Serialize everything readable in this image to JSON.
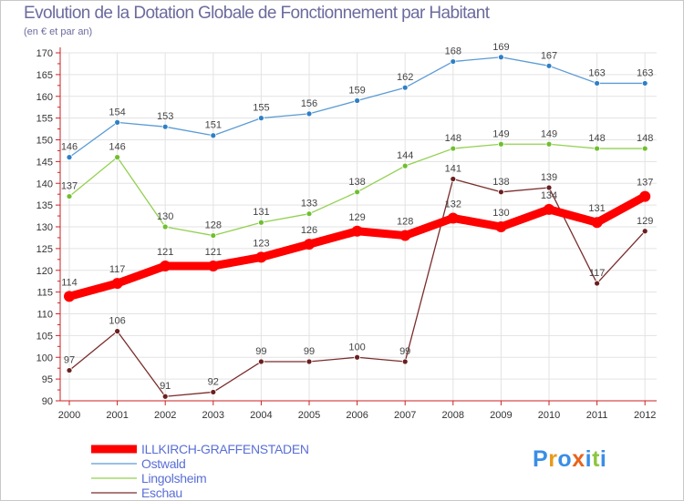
{
  "chart_data": {
    "type": "line",
    "title": "Evolution de la Dotation Globale de Fonctionnement par Habitant",
    "subtitle": "(en € et par an)",
    "xlabel": "",
    "ylabel": "",
    "ylim": [
      90,
      170
    ],
    "y_ticks": [
      90,
      95,
      100,
      105,
      110,
      115,
      120,
      125,
      130,
      135,
      140,
      145,
      150,
      155,
      160,
      165,
      170
    ],
    "x": [
      "2000",
      "2001",
      "2002",
      "2003",
      "2004",
      "2005",
      "2006",
      "2007",
      "2008",
      "2009",
      "2010",
      "2011",
      "2012"
    ],
    "grid": true,
    "legend_position": "bottom-left",
    "series": [
      {
        "name": "Ostwald",
        "color": "#5b9bd5",
        "marker": "#2f7fc6",
        "values": [
          146,
          154,
          153,
          151,
          155,
          156,
          159,
          162,
          168,
          169,
          167,
          163,
          163
        ]
      },
      {
        "name": "Lingolsheim",
        "color": "#92d050",
        "marker": "#6fbf2e",
        "values": [
          137,
          146,
          130,
          128,
          131,
          133,
          138,
          144,
          148,
          149,
          149,
          148,
          148
        ]
      },
      {
        "name": "Eschau",
        "color": "#7b2c2c",
        "marker": "#6a1f1f",
        "values": [
          97,
          106,
          91,
          92,
          99,
          99,
          100,
          99,
          141,
          138,
          139,
          117,
          129
        ]
      },
      {
        "name": "ILLKIRCH-GRAFFENSTADEN",
        "color": "#ff0000",
        "marker": "#ff0000",
        "values": [
          114,
          117,
          121,
          121,
          123,
          126,
          129,
          128,
          132,
          130,
          134,
          131,
          137
        ]
      }
    ],
    "legend": [
      "ILLKIRCH-GRAFFENSTADEN",
      "Ostwald",
      "Lingolsheim",
      "Eschau"
    ]
  },
  "logo": {
    "text": "Proxiti",
    "letters": [
      "P",
      "r",
      "o",
      "x",
      "i",
      "t",
      "i"
    ],
    "colors": [
      "#3a8ee6",
      "#e89a1c",
      "#3a8ee6",
      "#e8641c",
      "#3a8ee6",
      "#8cc63f",
      "#3a8ee6"
    ]
  }
}
